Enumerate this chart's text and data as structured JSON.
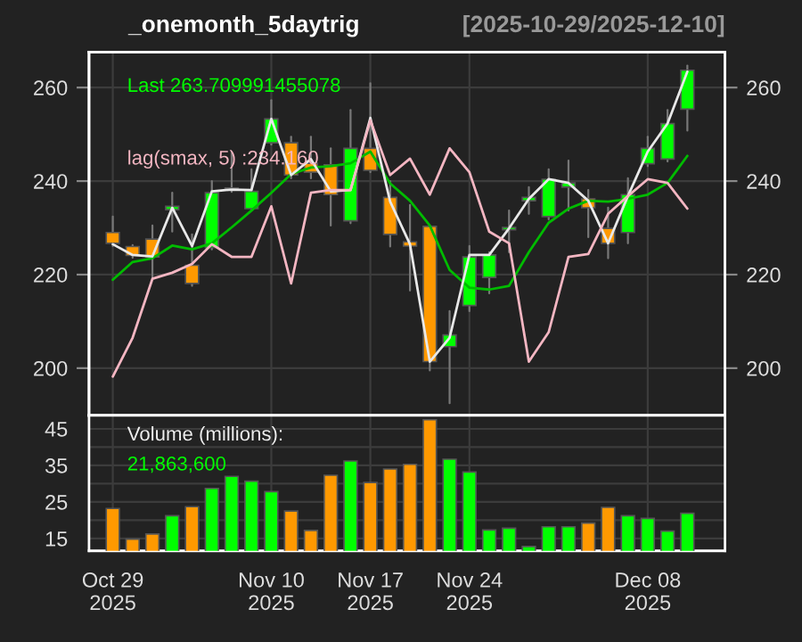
{
  "chart_data": [
    {
      "type": "candlestick",
      "title": "_onemonth_5daytrig",
      "subtitle": "[2025-10-29/2025-12-10]",
      "categories": [
        null,
        null,
        null,
        null,
        null,
        null,
        null,
        null,
        null,
        null,
        null,
        null,
        null,
        null,
        null,
        null,
        null,
        null,
        null,
        null,
        null,
        null,
        null,
        null,
        null,
        null,
        null,
        null,
        null,
        null
      ],
      "ohlc": [
        [
          229.0,
          232.4,
          226.1,
          226.7
        ],
        [
          226.0,
          226.3,
          223.6,
          224.1
        ],
        [
          227.6,
          230.5,
          219.1,
          223.8
        ],
        [
          233.9,
          237.5,
          229.2,
          234.6
        ],
        [
          222.0,
          228.6,
          217.6,
          218.1
        ],
        [
          225.8,
          240.0,
          225.4,
          237.5
        ],
        [
          238.2,
          246.3,
          237.7,
          238.5
        ],
        [
          234.1,
          242.5,
          233.7,
          237.8
        ],
        [
          248.2,
          257.3,
          247.8,
          253.3
        ],
        [
          248.2,
          249.5,
          240.6,
          241.3
        ],
        [
          243.8,
          249.5,
          240.6,
          241.9
        ],
        [
          243.5,
          247.0,
          230.5,
          237.1
        ],
        [
          231.5,
          255.2,
          231.0,
          247.0
        ],
        [
          247.0,
          260.9,
          241.9,
          242.3
        ],
        [
          236.5,
          240.0,
          226.0,
          228.6
        ],
        [
          227.0,
          234.9,
          216.6,
          226.1
        ],
        [
          230.3,
          230.5,
          199.5,
          201.4
        ],
        [
          204.6,
          212.2,
          192.5,
          207.1
        ],
        [
          213.4,
          226.1,
          212.2,
          223.8
        ],
        [
          219.4,
          224.8,
          216.0,
          224.2
        ],
        [
          229.6,
          233.7,
          224.8,
          230.1
        ],
        [
          235.8,
          238.7,
          233.0,
          236.5
        ],
        [
          232.4,
          242.5,
          231.8,
          240.4
        ],
        [
          238.7,
          244.4,
          233.7,
          239.6
        ],
        [
          236.2,
          238.1,
          228.0,
          234.3
        ],
        [
          229.9,
          234.3,
          223.5,
          226.7
        ],
        [
          229.0,
          240.6,
          226.7,
          237.1
        ],
        [
          243.7,
          249.5,
          243.2,
          247.0
        ],
        [
          244.7,
          255.2,
          244.2,
          252.3
        ],
        [
          255.4,
          264.7,
          250.8,
          263.7
        ]
      ],
      "colors": [
        "#ff9900",
        "#ff9900",
        "#ff9900",
        "#00ff00",
        "#ff9900",
        "#00ff00",
        "#00ff00",
        "#00ff00",
        "#00ff00",
        "#ff9900",
        "#ff9900",
        "#ff9900",
        "#00ff00",
        "#ff9900",
        "#ff9900",
        "#ff9900",
        "#ff9900",
        "#00ff00",
        "#00ff00",
        "#00ff00",
        "#00ff00",
        "#00ff00",
        "#00ff00",
        "#00ff00",
        "#ff9900",
        "#ff9900",
        "#00ff00",
        "#00ff00",
        "#00ff00",
        "#00ff00"
      ],
      "series": [
        {
          "type": "line",
          "color": "#00bb00",
          "values": [
            218.9,
            222.7,
            223.5,
            226.2,
            225.4,
            226.7,
            230.1,
            233.7,
            237.5,
            241.5,
            242.9,
            243.2,
            243.8,
            246.3,
            239.5,
            235.8,
            230.5,
            221.0,
            217.2,
            216.8,
            217.6,
            224.8,
            231.1,
            234.1,
            235.8,
            235.6,
            236.2,
            237.1,
            239.6,
            245.4
          ]
        },
        {
          "type": "line",
          "color": "#e8e8e8",
          "values": [
            226.5,
            224.2,
            223.9,
            234.3,
            226.1,
            237.8,
            238.2,
            238.1,
            253.3,
            241.3,
            244.7,
            237.8,
            238.1,
            253.5,
            235.6,
            226.5,
            201.4,
            206.5,
            224.2,
            224.2,
            229.9,
            236.2,
            240.4,
            239.6,
            235.8,
            226.7,
            236.8,
            246.3,
            252.3,
            263.4
          ]
        },
        {
          "type": "line",
          "color": "#f4b6c2",
          "values": [
            198.2,
            206.5,
            219.1,
            220.4,
            222.3,
            226.5,
            223.8,
            223.8,
            234.6,
            218.1,
            237.5,
            238.1,
            238.1,
            253.0,
            241.3,
            244.8,
            237.1,
            247.0,
            241.9,
            229.2,
            226.7,
            201.4,
            207.7,
            223.8,
            224.4,
            233.0,
            236.8,
            240.4,
            239.6,
            234.1
          ]
        }
      ],
      "annotations": [
        "Last 263.709991455078",
        "lag(smax, 5) :234.160"
      ],
      "ylim": [
        189.9,
        267.6
      ],
      "yticks": [
        200,
        220,
        240,
        260
      ],
      "y2lim": [
        189.9,
        267.6
      ],
      "y2ticks": [
        200,
        220,
        240,
        260
      ],
      "grid": true,
      "tick_labels": "y"
    },
    {
      "type": "bar",
      "categories": [
        "Oct 29\n2025",
        null,
        null,
        null,
        null,
        null,
        null,
        null,
        "Nov 10\n2025",
        null,
        null,
        null,
        null,
        "Nov 17\n2025",
        null,
        null,
        null,
        null,
        "Nov 24\n2025",
        null,
        null,
        null,
        null,
        null,
        null,
        null,
        null,
        "Dec 08\n2025",
        null,
        null
      ],
      "values": [
        23.2,
        14.8,
        16.2,
        21.2,
        23.7,
        28.7,
        32.0,
        30.7,
        27.8,
        22.5,
        17.2,
        32.3,
        36.2,
        30.3,
        34.0,
        35.3,
        47.5,
        36.7,
        33.2,
        17.3,
        17.8,
        12.8,
        18.2,
        18.2,
        19.2,
        23.5,
        21.2,
        20.5,
        17.0,
        21.9
      ],
      "colors": [
        "#ff9900",
        "#ff9900",
        "#ff9900",
        "#00ff00",
        "#ff9900",
        "#00ff00",
        "#00ff00",
        "#00ff00",
        "#00ff00",
        "#ff9900",
        "#ff9900",
        "#ff9900",
        "#00ff00",
        "#ff9900",
        "#ff9900",
        "#ff9900",
        "#ff9900",
        "#00ff00",
        "#00ff00",
        "#00ff00",
        "#00ff00",
        "#00ff00",
        "#00ff00",
        "#00ff00",
        "#ff9900",
        "#ff9900",
        "#00ff00",
        "#00ff00",
        "#00ff00",
        "#00ff00"
      ],
      "annotations": [
        "Volume (millions):",
        "21,863,600"
      ],
      "ylim": [
        11.6,
        48.7
      ],
      "yticks": [
        15,
        {
          "value": 20,
          "label": null
        },
        25,
        {
          "value": 30,
          "label": null
        },
        35,
        {
          "value": 40,
          "label": null
        },
        45
      ],
      "grid": true
    }
  ]
}
